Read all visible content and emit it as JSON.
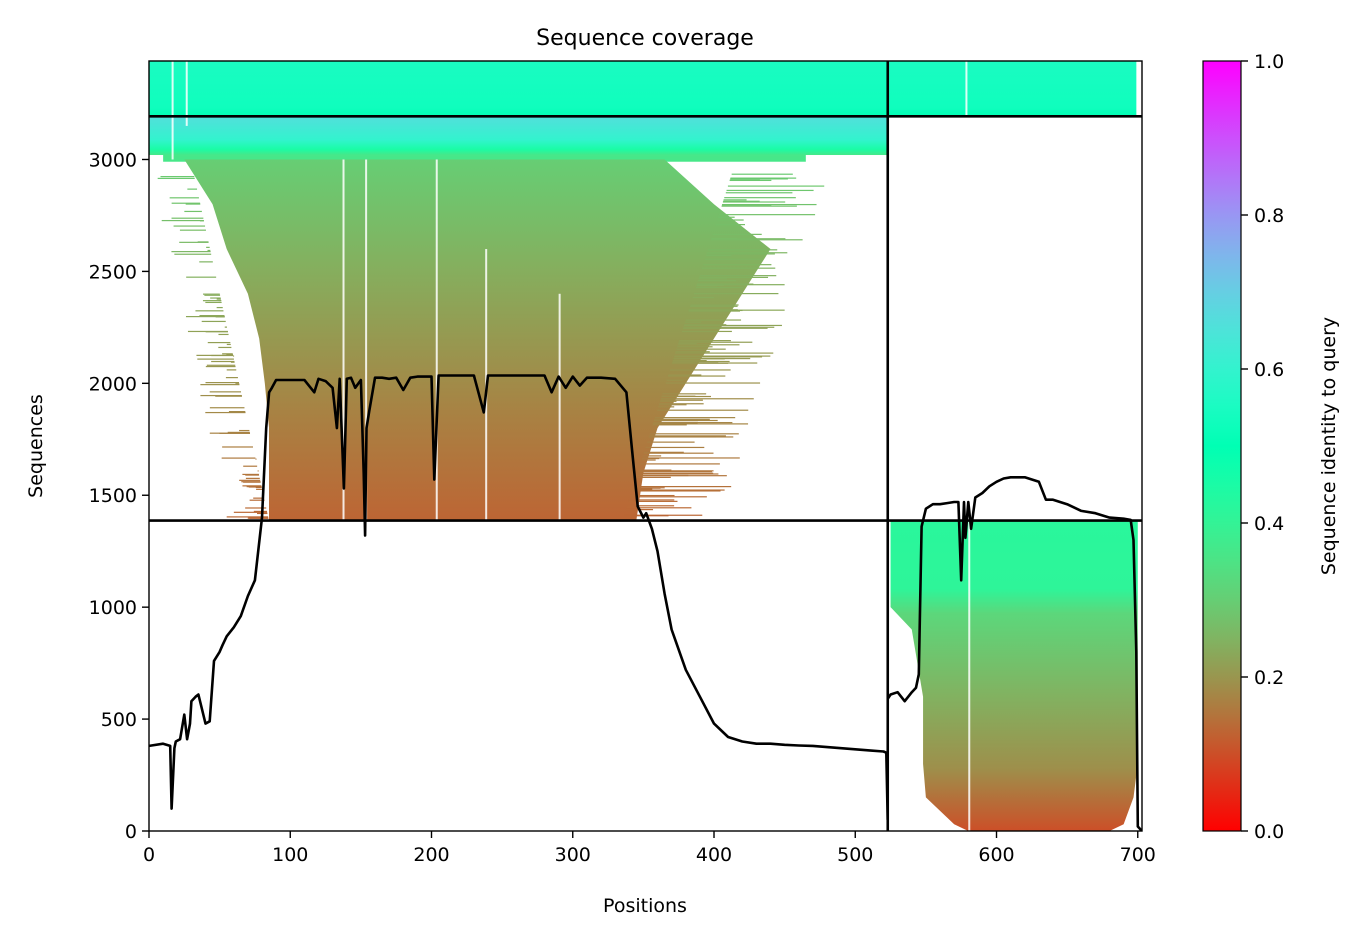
{
  "chart_data": {
    "type": "heatmap",
    "title": "Sequence coverage",
    "xlabel": "Positions",
    "ylabel": "Sequences",
    "xlim": [
      0,
      703
    ],
    "ylim": [
      0,
      3440
    ],
    "x_ticks": [
      0,
      100,
      200,
      300,
      400,
      500,
      600,
      700
    ],
    "y_ticks": [
      0,
      500,
      1000,
      1500,
      2000,
      2500,
      3000
    ],
    "grid": false,
    "colorbar": {
      "label": "Sequence identity to query",
      "colormap": "rainbow_r",
      "range": [
        0.0,
        1.0
      ],
      "ticks": [
        0.0,
        0.2,
        0.4,
        0.6,
        0.8,
        1.0
      ]
    },
    "dividers": {
      "vertical_x": 523,
      "horizontal_y": [
        1387,
        3193
      ]
    },
    "blocks": [
      {
        "x_range": [
          0,
          523
        ],
        "y_range": [
          3193,
          3440
        ],
        "identity": [
          0.52,
          0.55
        ]
      },
      {
        "x_range": [
          0,
          523
        ],
        "y_range": [
          3020,
          3193
        ],
        "identity": [
          0.38,
          0.65
        ]
      },
      {
        "x_range": [
          0,
          523
        ],
        "y_range": [
          1387,
          3020
        ],
        "identity": [
          0.13,
          0.3
        ]
      },
      {
        "x_range": [
          523,
          703
        ],
        "y_range": [
          3193,
          3440
        ],
        "identity": [
          0.52,
          0.55
        ]
      },
      {
        "x_range": [
          523,
          703
        ],
        "y_range": [
          1387,
          3193
        ],
        "identity": null
      },
      {
        "x_range": [
          523,
          703
        ],
        "y_range": [
          0,
          1387
        ],
        "identity": [
          0.1,
          0.42
        ]
      }
    ],
    "coverage_line": {
      "x": [
        0,
        10,
        15,
        16,
        18,
        19,
        22,
        25,
        27,
        29,
        30,
        33,
        35,
        40,
        43,
        46,
        50,
        52,
        55,
        60,
        65,
        70,
        75,
        80,
        83,
        85,
        87,
        90,
        100,
        110,
        117,
        120,
        125,
        130,
        133,
        135,
        138,
        140,
        143,
        146,
        150,
        152,
        153,
        154,
        156,
        160,
        165,
        170,
        175,
        180,
        185,
        190,
        200,
        202,
        205,
        210,
        220,
        230,
        237,
        240,
        245,
        250,
        260,
        270,
        280,
        285,
        290,
        295,
        300,
        305,
        310,
        315,
        320,
        330,
        338,
        342,
        346,
        350,
        352,
        356,
        360,
        365,
        370,
        380,
        390,
        400,
        410,
        420,
        430,
        440,
        450,
        460,
        470,
        480,
        490,
        500,
        510,
        520,
        522,
        523
      ],
      "y": [
        380,
        390,
        380,
        100,
        370,
        400,
        410,
        520,
        410,
        480,
        580,
        600,
        610,
        480,
        490,
        760,
        800,
        830,
        870,
        910,
        960,
        1050,
        1120,
        1400,
        1800,
        1960,
        1980,
        2015,
        2015,
        2015,
        1960,
        2020,
        2010,
        1980,
        1800,
        2020,
        1530,
        2020,
        2025,
        1980,
        2015,
        1600,
        1320,
        1800,
        1880,
        2025,
        2025,
        2020,
        2025,
        1970,
        2025,
        2030,
        2030,
        1570,
        2035,
        2035,
        2035,
        2035,
        1870,
        2035,
        2035,
        2035,
        2035,
        2035,
        2035,
        1960,
        2030,
        1980,
        2030,
        1990,
        2025,
        2025,
        2025,
        2020,
        1960,
        1700,
        1450,
        1400,
        1420,
        1350,
        1250,
        1060,
        900,
        720,
        600,
        480,
        420,
        400,
        390,
        390,
        385,
        382,
        380,
        375,
        370,
        365,
        360,
        355,
        350,
        50
      ],
      "x2": [
        523,
        525,
        530,
        535,
        540,
        543,
        545,
        547,
        550,
        555,
        560,
        565,
        570,
        573,
        575,
        577,
        578,
        580,
        582,
        585,
        590,
        595,
        600,
        605,
        610,
        620,
        630,
        635,
        640,
        650,
        660,
        670,
        680,
        690,
        695,
        697,
        699,
        700,
        703
      ],
      "y2": [
        590,
        610,
        620,
        580,
        620,
        640,
        700,
        1360,
        1440,
        1460,
        1460,
        1465,
        1470,
        1470,
        1120,
        1470,
        1310,
        1470,
        1350,
        1490,
        1510,
        1540,
        1560,
        1575,
        1580,
        1580,
        1560,
        1480,
        1480,
        1460,
        1430,
        1420,
        1400,
        1395,
        1390,
        1300,
        800,
        20,
        0
      ]
    }
  }
}
